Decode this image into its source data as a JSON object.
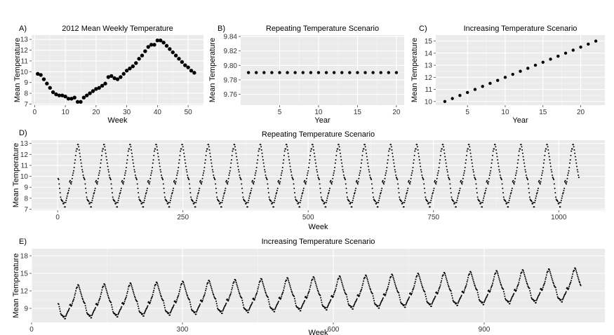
{
  "chart_data": [
    {
      "panel": "A)",
      "type": "scatter",
      "title": "2012 Mean Weekly Temperature",
      "xlabel": "Week",
      "ylabel": "Mean Temperature",
      "xlim": [
        -1,
        55
      ],
      "ylim": [
        6.9,
        13.4
      ],
      "xticks": [
        0,
        10,
        20,
        30,
        40,
        50
      ],
      "yticks": [
        7,
        8,
        9,
        10,
        11,
        12,
        13
      ],
      "grid": true,
      "x": [
        1,
        2,
        3,
        4,
        5,
        6,
        7,
        8,
        9,
        10,
        11,
        12,
        13,
        14,
        15,
        16,
        17,
        18,
        19,
        20,
        21,
        22,
        23,
        24,
        25,
        26,
        27,
        28,
        29,
        30,
        31,
        32,
        33,
        34,
        35,
        36,
        37,
        38,
        39,
        40,
        41,
        42,
        43,
        44,
        45,
        46,
        47,
        48,
        49,
        50,
        51,
        52
      ],
      "y": [
        9.8,
        9.7,
        9.3,
        8.9,
        8.5,
        8.1,
        7.9,
        7.8,
        7.8,
        7.7,
        7.5,
        7.5,
        7.6,
        7.2,
        7.2,
        7.6,
        7.8,
        8.0,
        8.2,
        8.4,
        8.5,
        8.7,
        8.9,
        9.5,
        9.6,
        9.4,
        9.3,
        9.5,
        9.8,
        10.1,
        10.3,
        10.5,
        10.8,
        11.2,
        11.5,
        11.9,
        12.3,
        12.5,
        12.5,
        12.9,
        12.9,
        12.7,
        12.4,
        12.1,
        11.8,
        11.5,
        11.2,
        10.9,
        10.6,
        10.4,
        10.1,
        9.9
      ]
    },
    {
      "panel": "B)",
      "type": "scatter",
      "title": "Repeating Temperature Scenario",
      "xlabel": "Year",
      "ylabel": "Mean Temperature",
      "xlim": [
        0,
        21
      ],
      "ylim": [
        9.745,
        9.842
      ],
      "xticks": [
        5,
        10,
        15,
        20
      ],
      "yticks": [
        9.76,
        9.78,
        9.8,
        9.82,
        9.84
      ],
      "ytick_labels": [
        "9.76",
        "9.78",
        "9.80",
        "9.82",
        "9.84"
      ],
      "grid": true,
      "x": [
        1,
        2,
        3,
        4,
        5,
        6,
        7,
        8,
        9,
        10,
        11,
        12,
        13,
        14,
        15,
        16,
        17,
        18,
        19,
        20
      ],
      "y": [
        9.79,
        9.79,
        9.79,
        9.79,
        9.79,
        9.79,
        9.79,
        9.79,
        9.79,
        9.79,
        9.79,
        9.79,
        9.79,
        9.79,
        9.79,
        9.79,
        9.79,
        9.79,
        9.79,
        9.79
      ]
    },
    {
      "panel": "C)",
      "type": "scatter",
      "title": "Increasing Temperature Scenario",
      "xlabel": "Year",
      "ylabel": "Mean Temperature",
      "xlim": [
        0.8,
        23.2
      ],
      "ylim": [
        9.7,
        15.5
      ],
      "xticks": [
        5,
        10,
        15,
        20
      ],
      "yticks": [
        10,
        11,
        12,
        13,
        14,
        15
      ],
      "grid": true,
      "x": [
        2,
        3,
        4,
        5,
        6,
        7,
        8,
        9,
        10,
        11,
        12,
        13,
        14,
        15,
        16,
        17,
        18,
        19,
        20,
        21,
        22
      ],
      "y": [
        10.0,
        10.25,
        10.5,
        10.75,
        11.0,
        11.25,
        11.5,
        11.75,
        12.0,
        12.25,
        12.5,
        12.75,
        13.0,
        13.25,
        13.5,
        13.75,
        14.0,
        14.25,
        14.5,
        14.75,
        15.0
      ]
    },
    {
      "panel": "D)",
      "type": "scatter",
      "title": "Repeating Temperature Scenario",
      "xlabel": "Week",
      "ylabel": "Mean Temperature",
      "xlim": [
        -52,
        1092
      ],
      "ylim": [
        6.9,
        13.3
      ],
      "xticks": [
        0,
        250,
        500,
        750,
        1000
      ],
      "yticks": [
        7,
        8,
        9,
        10,
        11,
        12,
        13
      ],
      "grid": true,
      "series_rule": "2012 weekly series (panel A) repeated for 20 years, weeks 1-1040"
    },
    {
      "panel": "E)",
      "type": "scatter",
      "title": "Increasing Temperature Scenario",
      "xlabel": "Week",
      "ylabel": "Mean Temperature",
      "xlim": [
        0,
        1140
      ],
      "ylim": [
        6.6,
        19.2
      ],
      "xticks": [
        0,
        300,
        600,
        900
      ],
      "yticks": [
        9,
        12,
        15,
        18
      ],
      "grid": true,
      "series_rule": "2012 weekly series repeated with warming trend, approx. weeks 53-1092, rising about 3 degrees over the period"
    }
  ]
}
